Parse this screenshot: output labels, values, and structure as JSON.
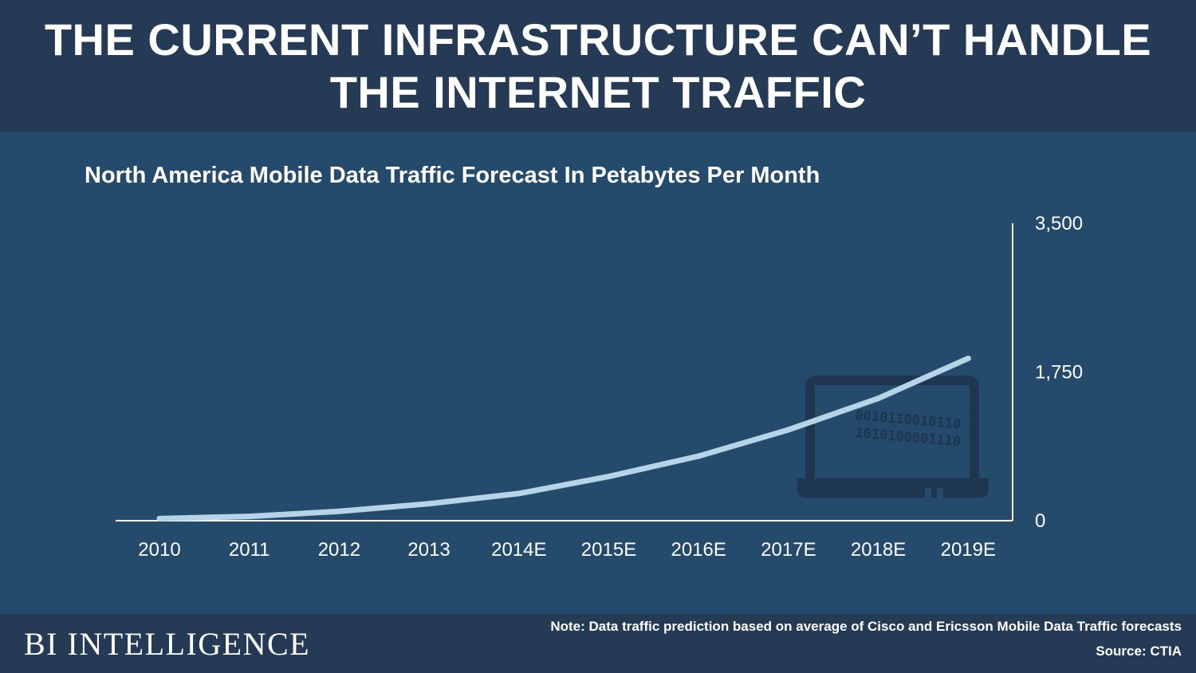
{
  "header": {
    "title_line1": "THE CURRENT INFRASTRUCTURE CAN’T HANDLE",
    "title_line2": "THE INTERNET TRAFFIC"
  },
  "chart_data": {
    "type": "line",
    "title": "North America Mobile Data Traffic Forecast In Petabytes Per Month",
    "categories": [
      "2010",
      "2011",
      "2012",
      "2013",
      "2014E",
      "2015E",
      "2016E",
      "2017E",
      "2018E",
      "2019E"
    ],
    "values": [
      25,
      50,
      110,
      200,
      320,
      520,
      760,
      1070,
      1440,
      1910
    ],
    "ylim": [
      0,
      3500
    ],
    "ytick_labels": [
      "0",
      "1,750",
      "3,500"
    ],
    "ytick_values": [
      0,
      1750,
      3500
    ],
    "y_axis_side": "right",
    "xlabel": "",
    "ylabel": "",
    "grid": false,
    "line_color": "#b6d4e8"
  },
  "decoration": {
    "icon": "laptop-icon",
    "binary_line1": "0010110010110",
    "binary_line2": "1010100001110"
  },
  "footer": {
    "brand": "BI INTELLIGENCE",
    "note": "Note: Data traffic prediction based on average of Cisco and Ericsson Mobile Data Traffic forecasts",
    "source": "Source: CTIA"
  },
  "colors": {
    "background": "#244a6c",
    "header_bg": "#253b55",
    "axis": "#ffffff",
    "icon": "#1e3650"
  }
}
